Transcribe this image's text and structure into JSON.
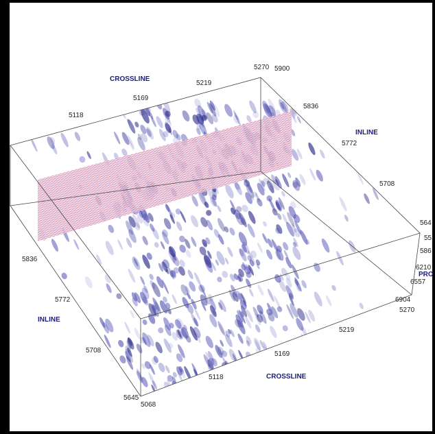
{
  "top_crossline": {
    "title": "CROSSLINE",
    "ticks": [
      "5118",
      "5169",
      "5219",
      "5270"
    ]
  },
  "top_inline": {
    "title": "INLINE",
    "ticks": [
      "5900",
      "5836",
      "5772",
      "5708",
      "564"
    ]
  },
  "left_inline": {
    "title": "INLINE",
    "ticks": [
      "5836",
      "5772",
      "5708",
      "5645"
    ]
  },
  "bottom_crossline": {
    "title": "CROSSLINE",
    "ticks": [
      "5068",
      "5118",
      "5169",
      "5219",
      "5270"
    ]
  },
  "right_axis": {
    "title": "PRO",
    "ticks": [
      "55",
      "586",
      "6210",
      "6557",
      "6904"
    ]
  }
}
